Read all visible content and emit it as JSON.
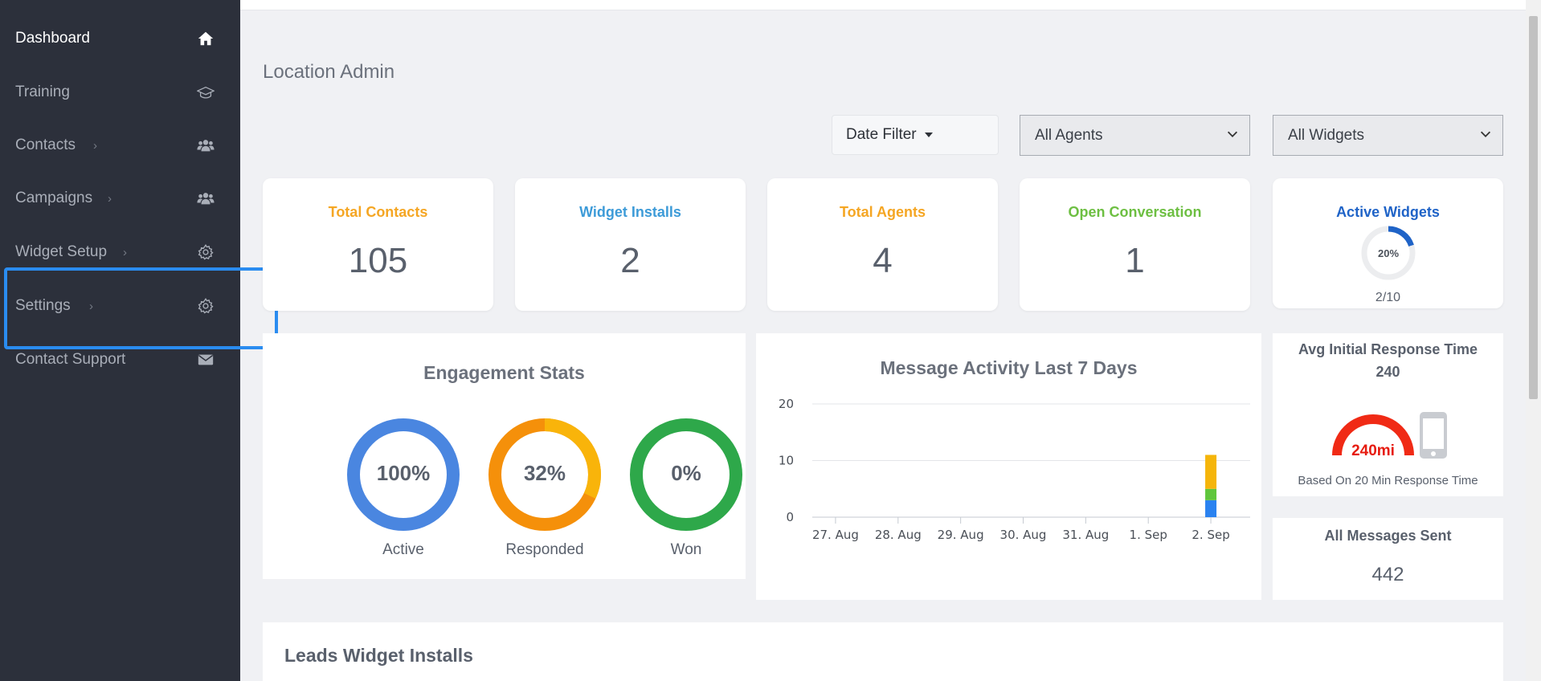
{
  "sidebar": {
    "items": [
      {
        "label": "Dashboard",
        "icon": "home-icon"
      },
      {
        "label": "Training",
        "icon": "graduation-cap-icon"
      },
      {
        "label": "Contacts",
        "icon": "users-icon"
      },
      {
        "label": "Campaigns",
        "icon": "users-icon"
      },
      {
        "label": "Widget Setup",
        "icon": "gear-icon"
      },
      {
        "label": "Settings",
        "icon": "gear-icon"
      },
      {
        "label": "Contact Support",
        "icon": "envelope-icon"
      }
    ]
  },
  "page": {
    "title": "Location Admin"
  },
  "filters": {
    "date_label": "Date Filter",
    "agents_value": "All Agents",
    "widgets_value": "All Widgets"
  },
  "stats": [
    {
      "title": "Total Contacts",
      "value": "105",
      "color": "#f5a623"
    },
    {
      "title": "Widget Installs",
      "value": "2",
      "color": "#3d9bd8"
    },
    {
      "title": "Total Agents",
      "value": "4",
      "color": "#f5a623"
    },
    {
      "title": "Open Conversation",
      "value": "1",
      "color": "#6dbf42"
    }
  ],
  "active_widgets": {
    "title": "Active Widgets",
    "percent_label": "20%",
    "percent": 0.2,
    "ratio": "2/10",
    "color": "#1f63c7"
  },
  "engagement": {
    "title": "Engagement Stats",
    "rings": [
      {
        "pct_label": "100%",
        "caption": "Active",
        "percent": 100,
        "color": "#4a86e0"
      },
      {
        "pct_label": "32%",
        "caption": "Responded",
        "percent": 32,
        "color": "#f9b40a"
      },
      {
        "pct_label": "0%",
        "caption": "Won",
        "percent": 0,
        "color": "#2ea84a"
      }
    ]
  },
  "chart_data": {
    "type": "bar",
    "title": "Message Activity Last 7 Days",
    "categories": [
      "27. Aug",
      "28. Aug",
      "29. Aug",
      "30. Aug",
      "31. Aug",
      "1. Sep",
      "2. Sep"
    ],
    "yticks": [
      "0",
      "10",
      "20"
    ],
    "ylim": [
      0,
      20
    ],
    "stacked": true,
    "series": [
      {
        "values": [
          0,
          0,
          0,
          0,
          0,
          0,
          3
        ],
        "color": "#2a82f0"
      },
      {
        "values": [
          0,
          0,
          0,
          0,
          0,
          0,
          2
        ],
        "color": "#5fc63c"
      },
      {
        "values": [
          0,
          0,
          0,
          0,
          0,
          0,
          6
        ],
        "color": "#f5b50a"
      }
    ]
  },
  "avg_response": {
    "title": "Avg Initial Response Time",
    "value": "240",
    "gauge_label": "240mi",
    "footnote": "Based On 20 Min Response Time"
  },
  "messages_sent": {
    "title": "All Messages Sent",
    "value": "442"
  },
  "leads": {
    "title": "Leads Widget Installs"
  }
}
